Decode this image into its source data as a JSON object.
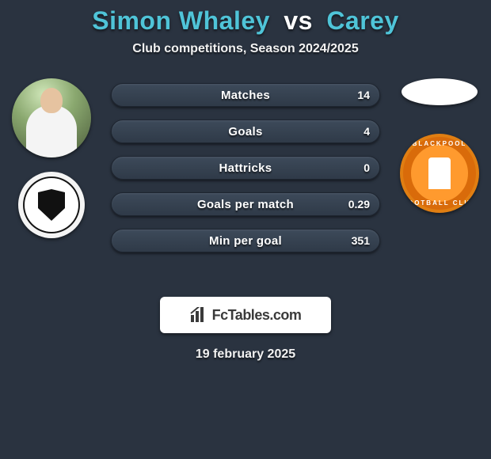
{
  "title": {
    "player1": "Simon Whaley",
    "vs": "vs",
    "player2": "Carey",
    "color_players": "#4fc4d8",
    "color_vs": "#ffffff",
    "fontsize": 32
  },
  "subtitle": {
    "text": "Club competitions, Season 2024/2025",
    "fontsize": 16
  },
  "background_color": "#2a3340",
  "left_images": {
    "avatar_name": "player-photo",
    "club_badge_name": "club-badge-left"
  },
  "right_images": {
    "bubble_name": "speech-bubble",
    "club_badge_name": "club-badge-right",
    "badge_ring_top": "BLACKPOOL",
    "badge_ring_bottom": "FOOTBALL CLUB"
  },
  "stats": {
    "type": "comparison-bars",
    "bar_bg": "#3d4a5a",
    "bar_border": "#1e2530",
    "label_color": "#ffffff",
    "label_fontsize": 15,
    "value_fontsize": 14,
    "rows": [
      {
        "label": "Matches",
        "left": "",
        "right": "14"
      },
      {
        "label": "Goals",
        "left": "",
        "right": "4"
      },
      {
        "label": "Hattricks",
        "left": "",
        "right": "0"
      },
      {
        "label": "Goals per match",
        "left": "",
        "right": "0.29"
      },
      {
        "label": "Min per goal",
        "left": "",
        "right": "351"
      }
    ]
  },
  "brand": {
    "text": "FcTables.com",
    "icon": "bar-chart-icon",
    "box_bg": "#ffffff",
    "text_color": "#3a3a3a"
  },
  "date": {
    "text": "19 february 2025",
    "fontsize": 16
  }
}
